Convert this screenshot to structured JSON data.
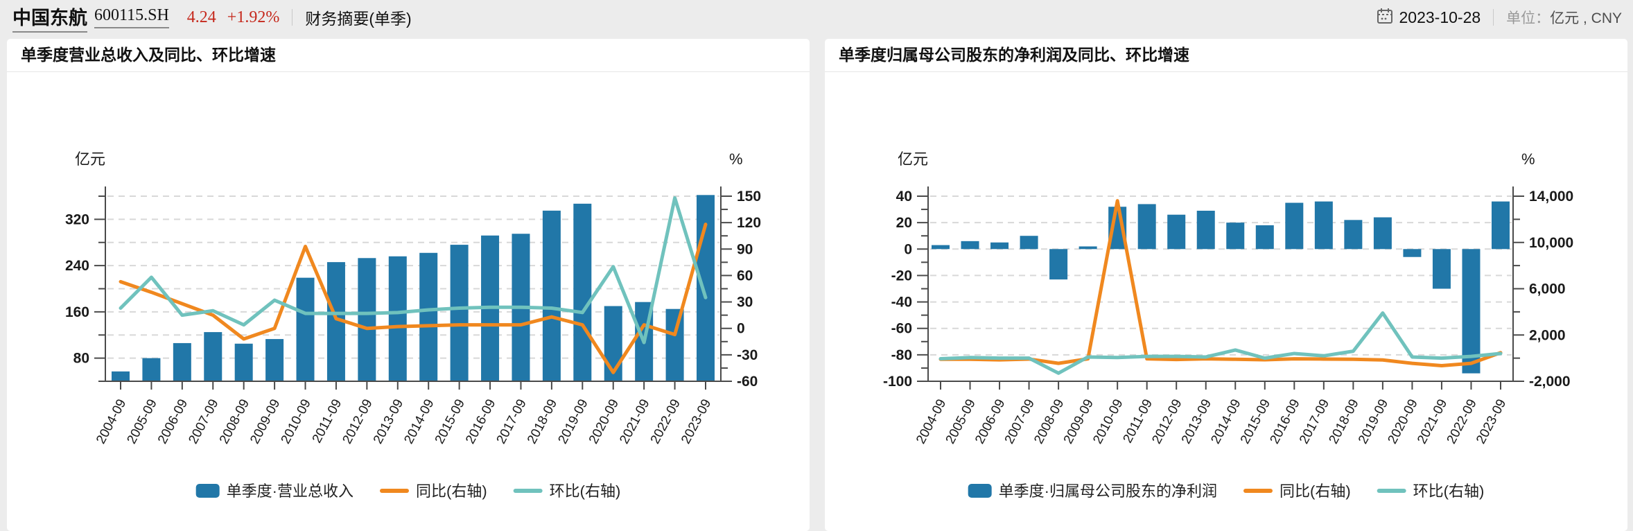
{
  "header": {
    "stock_name": "中国东航",
    "stock_code": "600115.SH",
    "price": "4.24",
    "change_percent": "+1.92%",
    "section_label": "财务摘要(单季)",
    "date": "2023-10-28",
    "unit_label": "单位：",
    "unit_value": "亿元 , CNY",
    "accent_red": "#c5281c"
  },
  "panels": [
    {
      "title": "单季度营业总收入及同比、环比增速"
    },
    {
      "title": "单季度归属母公司股东的净利润及同比、环比增速"
    }
  ],
  "chart_data": [
    {
      "type": "bar",
      "title": "单季度营业总收入及同比、环比增速",
      "legend_position": "bottom",
      "grid": true,
      "categories": [
        "2004-09",
        "2005-09",
        "2006-09",
        "2007-09",
        "2008-09",
        "2009-09",
        "2010-09",
        "2011-09",
        "2012-09",
        "2013-09",
        "2014-09",
        "2015-09",
        "2016-09",
        "2017-09",
        "2018-09",
        "2019-09",
        "2020-09",
        "2021-09",
        "2022-09",
        "2023-09"
      ],
      "bar_series": {
        "name": "单季度·营业总收入",
        "axis": "left",
        "color": "#2177a8",
        "values": [
          57,
          80,
          106,
          125,
          105,
          113,
          219,
          246,
          253,
          256,
          262,
          276,
          292,
          295,
          335,
          347,
          170,
          177,
          165,
          362
        ]
      },
      "line_series": [
        {
          "name": "同比(右轴)",
          "axis": "right",
          "color": "#f0881f",
          "values": [
            53,
            41,
            28,
            15,
            -12,
            0,
            93,
            11,
            0,
            2,
            3,
            4,
            4,
            4,
            13,
            4,
            -50,
            4,
            -7,
            118
          ]
        },
        {
          "name": "环比(右轴)",
          "axis": "right",
          "color": "#70c2bd",
          "values": [
            23,
            58,
            15,
            20,
            4,
            32,
            17,
            17,
            17,
            18,
            21,
            23,
            24,
            24,
            23,
            18,
            70,
            -16,
            148,
            35
          ]
        }
      ],
      "left_axis": {
        "title": "亿元",
        "min": 40,
        "max": 360,
        "tick_step": 40,
        "grid_step": 40,
        "labels": [
          80,
          160,
          240,
          320
        ]
      },
      "right_axis": {
        "title": "%",
        "min": -60,
        "max": 150,
        "tick_step": 15,
        "labels": [
          -60,
          -30,
          0,
          30,
          60,
          90,
          120,
          150
        ]
      }
    },
    {
      "type": "bar",
      "title": "单季度归属母公司股东的净利润及同比、环比增速",
      "legend_position": "bottom",
      "grid": true,
      "categories": [
        "2004-09",
        "2005-09",
        "2006-09",
        "2007-09",
        "2008-09",
        "2009-09",
        "2010-09",
        "2011-09",
        "2012-09",
        "2013-09",
        "2014-09",
        "2015-09",
        "2016-09",
        "2017-09",
        "2018-09",
        "2019-09",
        "2020-09",
        "2021-09",
        "2022-09",
        "2023-09"
      ],
      "bar_series": {
        "name": "单季度·归属母公司股东的净利润",
        "axis": "left",
        "color": "#2177a8",
        "values": [
          3,
          6,
          5,
          10,
          -23,
          2,
          32,
          34,
          26,
          29,
          20,
          18,
          35,
          36,
          22,
          24,
          -6,
          -30,
          -94,
          36
        ]
      },
      "line_series": [
        {
          "name": "同比(右轴)",
          "axis": "right",
          "color": "#f0881f",
          "values": [
            -100,
            -100,
            -150,
            -80,
            -450,
            -60,
            13600,
            -60,
            -120,
            -60,
            -100,
            -140,
            -60,
            -80,
            -100,
            -160,
            -450,
            -650,
            -450,
            470
          ]
        },
        {
          "name": "环比(右轴)",
          "axis": "right",
          "color": "#70c2bd",
          "values": [
            -50,
            50,
            0,
            0,
            -1300,
            100,
            50,
            150,
            150,
            100,
            700,
            0,
            400,
            200,
            600,
            3900,
            100,
            0,
            150,
            400
          ]
        }
      ],
      "left_axis": {
        "title": "亿元",
        "min": -100,
        "max": 40,
        "tick_step": 10,
        "grid_step": 20,
        "labels": [
          -100,
          -80,
          -60,
          -40,
          -20,
          0,
          20,
          40
        ]
      },
      "right_axis": {
        "title": "%",
        "min": -2000,
        "max": 14000,
        "tick_step": 2000,
        "labels": [
          -2000,
          2000,
          6000,
          10000,
          14000
        ]
      }
    }
  ]
}
